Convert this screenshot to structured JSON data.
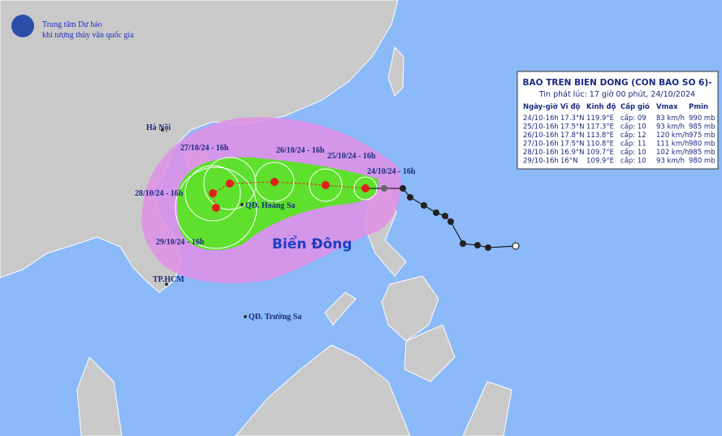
{
  "header": {
    "org_line1": "Trung tâm Dự báo",
    "org_line2": "khí tượng thủy văn quốc gia"
  },
  "panel": {
    "title": "BAO TREN BIEN DONG (CON BAO SO 6)-",
    "issued": "Tin phát lúc: 17 giờ 00 phút, 24/10/2024",
    "columns": [
      "Ngày-giờ",
      "Vĩ độ",
      "Kinh độ",
      "Cấp gió",
      "Vmax",
      "Pmin"
    ],
    "rows": [
      [
        "24/10-16h",
        "17.3°N",
        "119.9°E",
        "cấp: 09",
        "83 km/h",
        "990 mb"
      ],
      [
        "25/10-16h",
        "17.5°N",
        "117.3°E",
        "cấp: 10",
        "93 km/h",
        "985 mb"
      ],
      [
        "26/10-16h",
        "17.8°N",
        "113.8°E",
        "cấp: 12",
        "120 km/h",
        "975 mb"
      ],
      [
        "27/10-16h",
        "17.5°N",
        "110.8°E",
        "cấp: 11",
        "111 km/h",
        "980 mb"
      ],
      [
        "28/10-16h",
        "16.9°N",
        "109.7°E",
        "cấp: 10",
        "102 km/h",
        "985 mb"
      ],
      [
        "29/10-16h",
        "16°N",
        "109.9°E",
        "cấp: 10",
        "93 km/h",
        "980 mb"
      ]
    ]
  },
  "map": {
    "places": [
      "Hà Nội",
      "TP.HCM",
      "QĐ. Hoàng Sa",
      "QĐ. Trường Sa"
    ],
    "sea": "Biển Đông",
    "forecast_labels": [
      "24/10/24 - 16h",
      "25/10/24 - 16h",
      "26/10/24 - 16h",
      "27/10/24 - 16h",
      "28/10/24 - 16h",
      "29/10/24 - 16h"
    ]
  }
}
